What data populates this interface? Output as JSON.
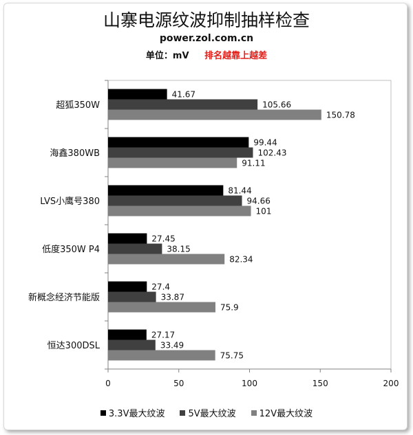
{
  "chart_data": {
    "type": "bar",
    "orientation": "horizontal",
    "title": "山寨电源纹波抑制抽样检查",
    "subtitle": "power.zol.com.cn",
    "unit_label": "单位：mV",
    "note": "排名越靠上越差",
    "categories": [
      "超狐350W",
      "海鑫380WB",
      "LVS小鹰号380",
      "低度350W P4",
      "新概念经济节能版",
      "恒达300DSL"
    ],
    "series": [
      {
        "name": "3.3V最大纹波",
        "color": "#000000",
        "values": [
          41.67,
          99.44,
          81.44,
          27.45,
          27.4,
          27.17
        ]
      },
      {
        "name": "5V最大纹波",
        "color": "#404040",
        "values": [
          105.66,
          102.43,
          94.66,
          38.15,
          33.87,
          33.49
        ]
      },
      {
        "name": "12V最大纹波",
        "color": "#808080",
        "values": [
          150.78,
          91.11,
          101,
          82.34,
          75.9,
          75.75
        ]
      }
    ],
    "xlim": [
      0,
      200
    ],
    "xticks": [
      0,
      50,
      100,
      150,
      200
    ],
    "grid": false,
    "legend": "bottom"
  }
}
